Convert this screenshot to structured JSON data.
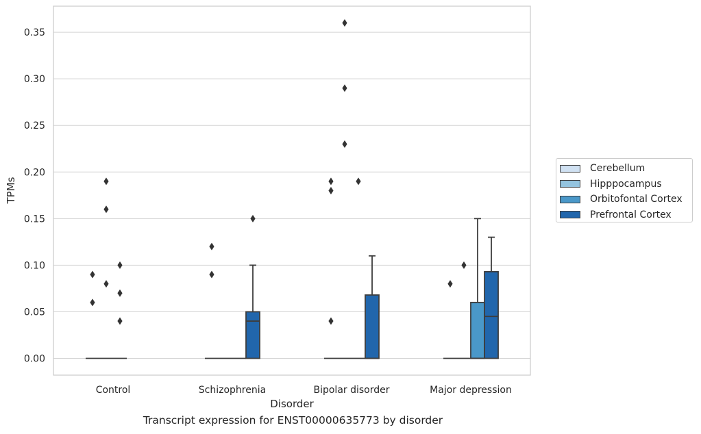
{
  "chart_data": {
    "type": "box",
    "title": "Transcript expression for ENST00000635773 by disorder",
    "xlabel": "Disorder",
    "ylabel": "TPMs",
    "ylim": [
      -0.018,
      0.378
    ],
    "yticks": [
      0.0,
      0.05,
      0.1,
      0.15,
      0.2,
      0.25,
      0.3,
      0.35
    ],
    "ytick_labels": [
      "0.00",
      "0.05",
      "0.10",
      "0.15",
      "0.20",
      "0.25",
      "0.30",
      "0.35"
    ],
    "categories": [
      "Control",
      "Schizophrenia",
      "Bipolar disorder",
      "Major depression"
    ],
    "grid": "horizontal",
    "legend_position": "right",
    "series": [
      {
        "name": "Cerebellum",
        "color": "#d0e1f2",
        "boxes": [
          {
            "q1": 0,
            "median": 0,
            "q3": 0,
            "whislo": 0,
            "whishi": 0,
            "fliers": [
              0.06,
              0.09
            ]
          },
          {
            "q1": 0,
            "median": 0,
            "q3": 0,
            "whislo": 0,
            "whishi": 0,
            "fliers": [
              0.09,
              0.12
            ]
          },
          {
            "q1": 0,
            "median": 0,
            "q3": 0,
            "whislo": 0,
            "whishi": 0,
            "fliers": [
              0.04,
              0.18,
              0.19
            ]
          },
          {
            "q1": 0,
            "median": 0,
            "q3": 0,
            "whislo": 0,
            "whishi": 0,
            "fliers": [
              0.08
            ]
          }
        ]
      },
      {
        "name": "Hipppocampus",
        "color": "#94c4df",
        "boxes": [
          {
            "q1": 0,
            "median": 0,
            "q3": 0,
            "whislo": 0,
            "whishi": 0,
            "fliers": [
              0.08,
              0.16,
              0.19
            ]
          },
          {
            "q1": 0,
            "median": 0,
            "q3": 0,
            "whislo": 0,
            "whishi": 0,
            "fliers": []
          },
          {
            "q1": 0,
            "median": 0,
            "q3": 0,
            "whislo": 0,
            "whishi": 0,
            "fliers": [
              0.23,
              0.29,
              0.36
            ]
          },
          {
            "q1": 0,
            "median": 0,
            "q3": 0,
            "whislo": 0,
            "whishi": 0,
            "fliers": [
              0.1
            ]
          }
        ]
      },
      {
        "name": "Orbitofontal Cortex",
        "color": "#4a98c9",
        "boxes": [
          {
            "q1": 0,
            "median": 0,
            "q3": 0,
            "whislo": 0,
            "whishi": 0,
            "fliers": [
              0.04,
              0.07,
              0.1
            ]
          },
          {
            "q1": 0,
            "median": 0,
            "q3": 0,
            "whislo": 0,
            "whishi": 0,
            "fliers": []
          },
          {
            "q1": 0,
            "median": 0,
            "q3": 0,
            "whislo": 0,
            "whishi": 0,
            "fliers": [
              0.19
            ]
          },
          {
            "q1": 0,
            "median": 0,
            "q3": 0.06,
            "whislo": 0,
            "whishi": 0.15,
            "fliers": []
          }
        ]
      },
      {
        "name": "Prefrontal Cortex",
        "color": "#2166ac",
        "boxes": [
          null,
          {
            "q1": 0,
            "median": 0.04,
            "q3": 0.05,
            "whislo": 0,
            "whishi": 0.1,
            "fliers": [
              0.15
            ]
          },
          {
            "q1": 0,
            "median": 0,
            "q3": 0.068,
            "whislo": 0,
            "whishi": 0.11,
            "fliers": []
          },
          {
            "q1": 0,
            "median": 0.045,
            "q3": 0.093,
            "whislo": 0,
            "whishi": 0.13,
            "fliers": []
          }
        ]
      }
    ]
  }
}
